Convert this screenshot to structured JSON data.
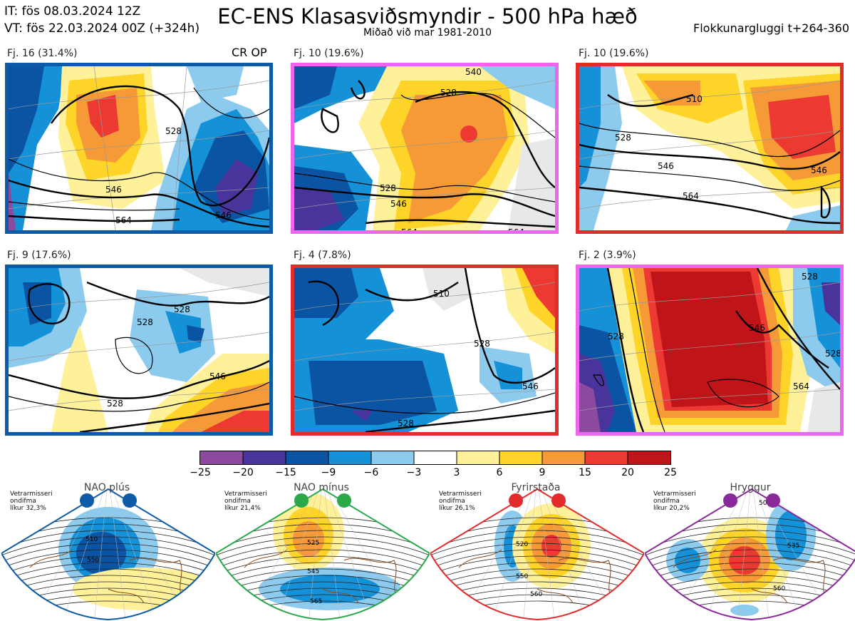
{
  "header": {
    "it_line": "IT: fös 08.03.2024 12Z",
    "vt_line": "VT: fös 22.03.2024 00Z  (+324h)",
    "title": "EC-ENS Klasasviðsmyndir - 500 hPa hæð",
    "subtitle": "Miðað við mar 1981-2010",
    "window": "Flokkunargluggi t+264-360"
  },
  "panels": [
    {
      "label": "Fj. 16 (31.4%)",
      "tag": "CR OP",
      "border": "#0d5aa7",
      "contours": [
        "528",
        "546",
        "564",
        "546",
        "564"
      ]
    },
    {
      "label": "Fj. 10 (19.6%)",
      "tag": "",
      "border": "#ee66ee",
      "contours": [
        "540",
        "528",
        "528",
        "546",
        "564",
        "564"
      ]
    },
    {
      "label": "Fj. 10 (19.6%)",
      "tag": "",
      "border": "#e32b2b",
      "contours": [
        "510",
        "528",
        "546",
        "564",
        "546"
      ]
    },
    {
      "label": "Fj. 9 (17.6%)",
      "tag": "",
      "border": "#0d5aa7",
      "contours": [
        "528",
        "528",
        "546",
        "528",
        "546",
        "564"
      ]
    },
    {
      "label": "Fj. 4 (7.8%)",
      "tag": "",
      "border": "#e32b2b",
      "contours": [
        "510",
        "528",
        "546",
        "528",
        "546"
      ]
    },
    {
      "label": "Fj. 2 (3.9%)",
      "tag": "",
      "border": "#ee66ee",
      "contours": [
        "528",
        "546",
        "564",
        "528",
        "528"
      ]
    }
  ],
  "colorbar": {
    "colors": [
      "#8c4a9e",
      "#48349a",
      "#0a54a3",
      "#1591d8",
      "#8ccaee",
      "#ffffff",
      "#fff199",
      "#fdd427",
      "#f59a37",
      "#ec3a33",
      "#bf1419"
    ],
    "labels": [
      "−25",
      "−20",
      "−15",
      "−9",
      "−6",
      "−3",
      "3",
      "6",
      "9",
      "15",
      "20",
      "25"
    ]
  },
  "regimes": [
    {
      "name": "NAO plús",
      "note_1": "Vetrarmisseri",
      "note_2": "ondifma",
      "note_3": "líkur 32,3%",
      "color": "#0d5aa7",
      "contours": [
        "510",
        "550"
      ]
    },
    {
      "name": "NAO mínus",
      "note_1": "Vetrarmisseri",
      "note_2": "ondifma",
      "note_3": "líkur 21,4%",
      "color": "#2aa84a",
      "contours": [
        "525",
        "545",
        "565"
      ]
    },
    {
      "name": "Fyrirstaða",
      "note_1": "Vetrarmisseri",
      "note_2": "ondifma",
      "note_3": "líkur 26,1%",
      "color": "#e32b2b",
      "contours": [
        "520",
        "550",
        "560"
      ]
    },
    {
      "name": "Hryggur",
      "note_1": "Vetrarmisseri",
      "note_2": "ondifma",
      "note_3": "líkur 20,2%",
      "color": "#8a2a9a",
      "contours": [
        "505",
        "535",
        "560"
      ]
    }
  ]
}
